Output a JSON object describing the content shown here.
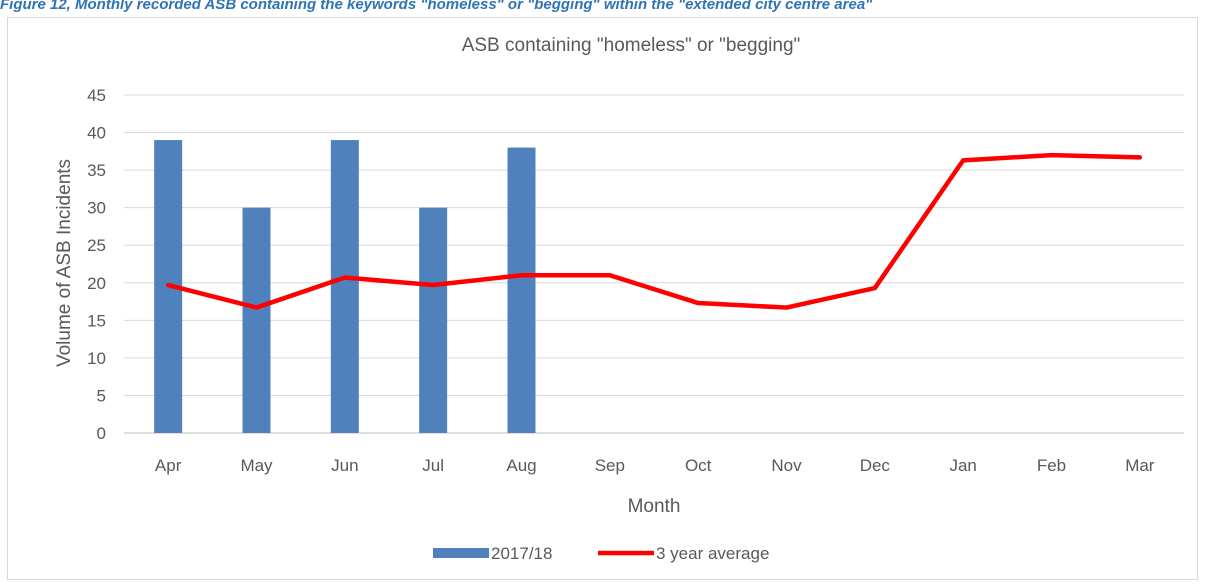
{
  "caption": "Figure 12, Monthly recorded ASB containing the keywords \"homeless\" or \"begging\" within the \"extended city centre area\"",
  "chart_data": {
    "type": "bar",
    "title": "ASB containing \"homeless\" or \"begging\"",
    "xlabel": "Month",
    "ylabel": "Volume of ASB Incidents",
    "ylim": [
      0,
      45
    ],
    "yticks": [
      0,
      5,
      10,
      15,
      20,
      25,
      30,
      35,
      40,
      45
    ],
    "grid": true,
    "legend_position": "bottom",
    "categories": [
      "Apr",
      "May",
      "Jun",
      "Jul",
      "Aug",
      "Sep",
      "Oct",
      "Nov",
      "Dec",
      "Jan",
      "Feb",
      "Mar"
    ],
    "series": [
      {
        "name": "2017/18",
        "type": "bar",
        "color": "#4f81bd",
        "values": [
          39,
          30,
          39,
          30,
          38,
          null,
          null,
          null,
          null,
          null,
          null,
          null
        ]
      },
      {
        "name": "3 year average",
        "type": "line",
        "color": "#ff0000",
        "values": [
          19.7,
          16.7,
          20.7,
          19.7,
          21.0,
          21.0,
          17.3,
          16.7,
          19.3,
          36.3,
          37.0,
          36.7
        ]
      }
    ]
  }
}
